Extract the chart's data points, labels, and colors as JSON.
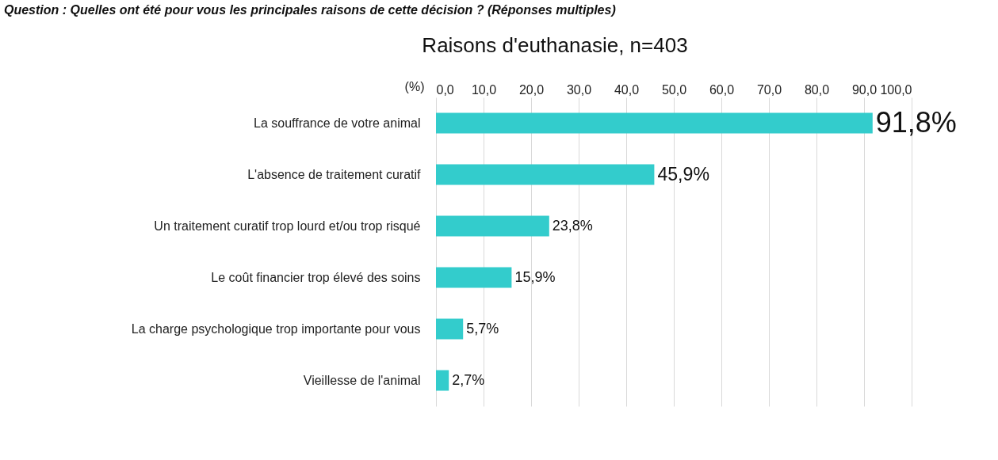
{
  "chart_data": {
    "type": "bar",
    "orientation": "horizontal",
    "title": "Raisons d'euthanasie, n=403",
    "xlabel": "(%)",
    "annotations": [
      "Question : Quelles ont été pour vous les principales raisons de cette décision ? (Réponses multiples)"
    ],
    "categories": [
      "La souffrance de votre animal",
      "L'absence de traitement curatif",
      "Un traitement curatif trop lourd et/ou trop risqué",
      "Le coût financier trop élevé des soins",
      "La charge psychologique trop importante pour vous",
      "Vieillesse de l'animal"
    ],
    "values": [
      91.8,
      45.9,
      23.8,
      15.9,
      5.7,
      2.7
    ],
    "value_labels": [
      "91,8%",
      "45,9%",
      "23,8%",
      "15,9%",
      "5,7%",
      "2,7%"
    ],
    "color": "#33cccc",
    "xlim": [
      0,
      100
    ],
    "xticks": [
      {
        "value": 0,
        "label": "0,0"
      },
      {
        "value": 10,
        "label": "10,0"
      },
      {
        "value": 20,
        "label": "20,0"
      },
      {
        "value": 30,
        "label": "30,0"
      },
      {
        "value": 40,
        "label": "40,0"
      },
      {
        "value": 50,
        "label": "50,0"
      },
      {
        "value": 60,
        "label": "60,0"
      },
      {
        "value": 70,
        "label": "70,0"
      },
      {
        "value": 80,
        "label": "80,0"
      },
      {
        "value": 90,
        "label": "90,0"
      },
      {
        "value": 100,
        "label": "100,0"
      }
    ],
    "grid": "x"
  }
}
